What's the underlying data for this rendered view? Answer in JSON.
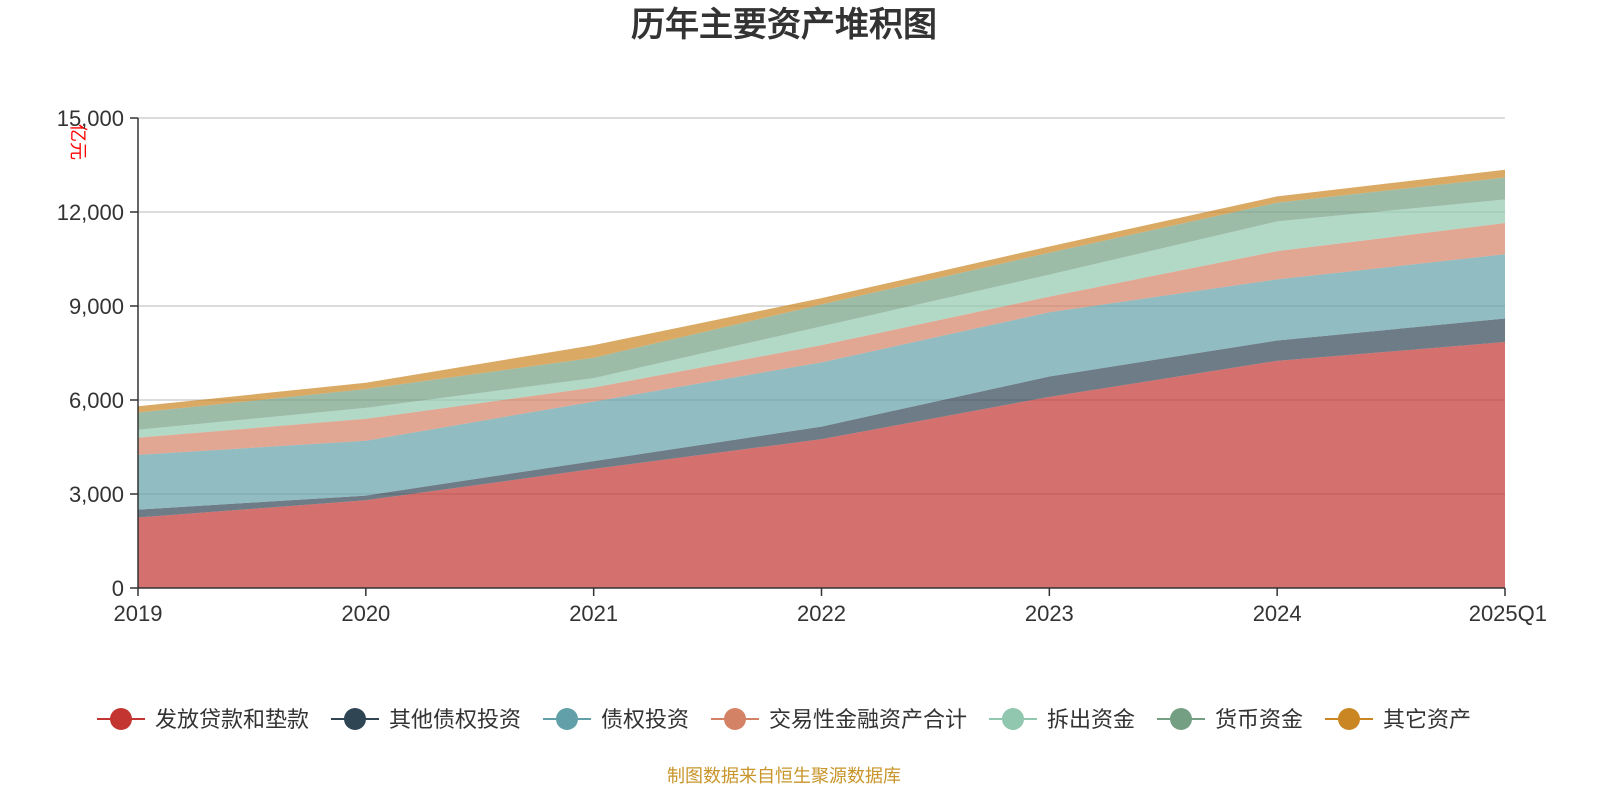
{
  "chart_data": {
    "type": "area",
    "stacked": true,
    "title": "历年主要资产堆积图",
    "unit_label": "亿元",
    "categories": [
      "2019",
      "2020",
      "2021",
      "2022",
      "2023",
      "2024",
      "2025Q1"
    ],
    "ylim": [
      0,
      15000
    ],
    "y_ticks": [
      0,
      3000,
      6000,
      9000,
      12000,
      15000
    ],
    "y_tick_labels": [
      "0",
      "3,000",
      "6,000",
      "9,000",
      "12,000",
      "15,000"
    ],
    "grid": true,
    "legend_position": "bottom",
    "series": [
      {
        "name": "发放贷款和垫款",
        "color": "#c23531",
        "values": [
          2250,
          2800,
          3800,
          4750,
          6100,
          7250,
          7850
        ]
      },
      {
        "name": "其他债权投资",
        "color": "#2f4554",
        "values": [
          250,
          150,
          250,
          400,
          650,
          650,
          750
        ]
      },
      {
        "name": "债权投资",
        "color": "#61a0a8",
        "values": [
          1750,
          1750,
          1900,
          2050,
          2050,
          1950,
          2050
        ]
      },
      {
        "name": "交易性金融资产合计",
        "color": "#d48265",
        "values": [
          550,
          700,
          450,
          550,
          500,
          900,
          1000
        ]
      },
      {
        "name": "拆出资金",
        "color": "#91c7ae",
        "values": [
          250,
          350,
          300,
          600,
          700,
          950,
          750
        ]
      },
      {
        "name": "货币资金",
        "color": "#749f83",
        "values": [
          550,
          600,
          650,
          700,
          700,
          600,
          700
        ]
      },
      {
        "name": "其它资产",
        "color": "#ca8622",
        "values": [
          200,
          200,
          400,
          200,
          200,
          200,
          250
        ]
      }
    ]
  },
  "footer": {
    "source_text": "制图数据来自恒生聚源数据库"
  }
}
